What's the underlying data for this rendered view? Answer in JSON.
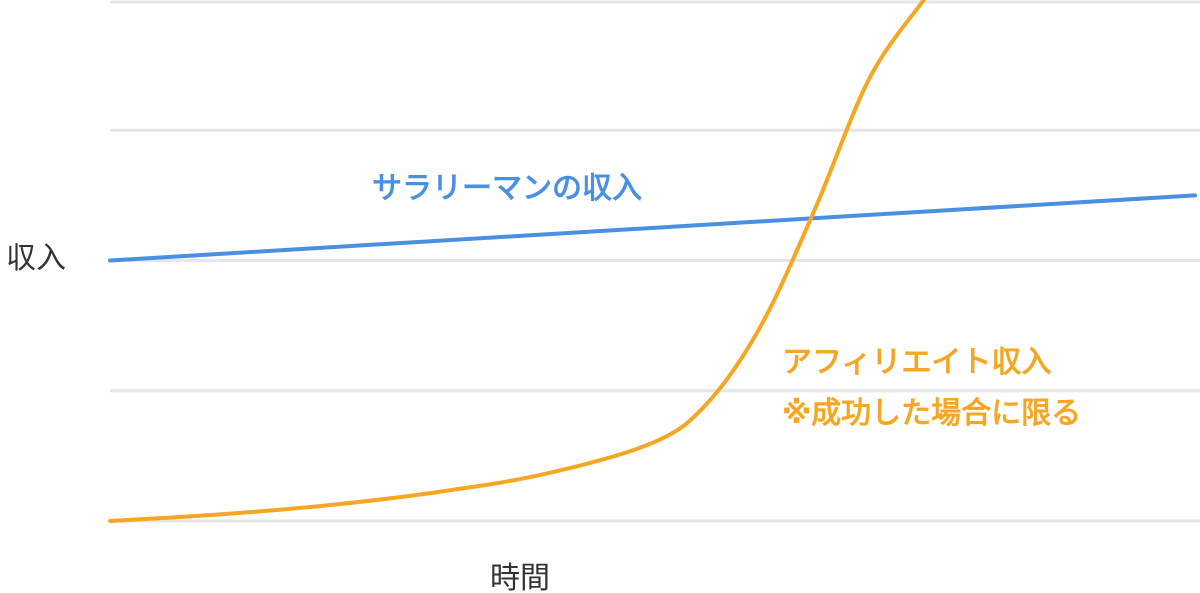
{
  "chart_data": {
    "type": "line",
    "xlabel": "時間",
    "ylabel": "収入",
    "grid": true,
    "x_range": [
      0,
      10
    ],
    "y_range": [
      0,
      4
    ],
    "series": [
      {
        "color": "#4a90e2",
        "points": [
          [
            0,
            2.0
          ],
          [
            10,
            2.5
          ]
        ]
      },
      {
        "color": "#f5a623",
        "points": [
          [
            0,
            0.0
          ],
          [
            1,
            0.05
          ],
          [
            2,
            0.12
          ],
          [
            3,
            0.22
          ],
          [
            4,
            0.36
          ],
          [
            5,
            0.6
          ],
          [
            5.5,
            0.9
          ],
          [
            6,
            1.5
          ],
          [
            6.5,
            2.4
          ],
          [
            7,
            3.4
          ],
          [
            7.5,
            4.0
          ]
        ]
      }
    ],
    "annotations": [
      {
        "text": "サラリーマンの収入",
        "color": "#4a90e2"
      },
      {
        "text": "アフィリエイト収入",
        "color": "#f5a623"
      },
      {
        "text": "※成功した場合に限る",
        "color": "#f5a623"
      }
    ]
  }
}
